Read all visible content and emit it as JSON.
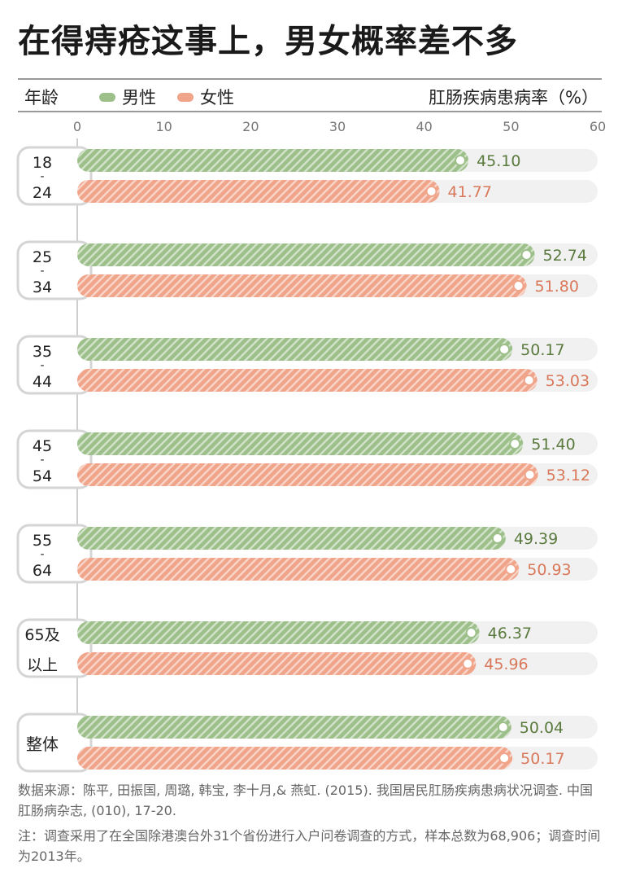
{
  "title": "在得痔疮这事上，男女概率差不多",
  "header": {
    "age_label": "年龄",
    "male_label": "男性",
    "female_label": "女性",
    "rate_label": "肛肠疾病患病率（%）"
  },
  "colors": {
    "male": "#9dc08b",
    "female": "#f0a48a",
    "male_text": "#5a7a3e",
    "female_text": "#d9785a",
    "track": "#f1f1f1",
    "bracket": "#d5d5d5"
  },
  "chart_data": {
    "type": "bar",
    "orientation": "horizontal",
    "title": "在得痔疮这事上，男女概率差不多",
    "xlabel": "肛肠疾病患病率（%）",
    "ylabel": "年龄",
    "xlim": [
      0,
      60
    ],
    "xticks": [
      0,
      10,
      20,
      30,
      40,
      50,
      60
    ],
    "categories": [
      {
        "top": "18",
        "sep": "-",
        "bottom": "24"
      },
      {
        "top": "25",
        "sep": "-",
        "bottom": "34"
      },
      {
        "top": "35",
        "sep": "-",
        "bottom": "44"
      },
      {
        "top": "45",
        "sep": "-",
        "bottom": "54"
      },
      {
        "top": "55",
        "sep": "-",
        "bottom": "64"
      },
      {
        "top": "65及",
        "sep": "",
        "bottom": "以上"
      },
      {
        "top": "整体",
        "sep": "",
        "bottom": ""
      }
    ],
    "series": [
      {
        "name": "男性",
        "values": [
          45.1,
          52.74,
          50.17,
          51.4,
          49.39,
          46.37,
          50.04
        ],
        "labels": [
          "45.10",
          "52.74",
          "50.17",
          "51.40",
          "49.39",
          "46.37",
          "50.04"
        ]
      },
      {
        "name": "女性",
        "values": [
          41.77,
          51.8,
          53.03,
          53.12,
          50.93,
          45.96,
          50.17
        ],
        "labels": [
          "41.77",
          "51.80",
          "53.03",
          "53.12",
          "50.93",
          "45.96",
          "50.17"
        ]
      }
    ]
  },
  "source_text": "数据来源：陈平, 田振国, 周璐, 韩宝, 李十月,& 燕虹. (2015). 我国居民肛肠疾病患病状况调查. 中国肛肠病杂志, (010), 17-20.",
  "note_text": "注：调查采用了在全国除港澳台外31个省份进行入户问卷调查的方式，样本总数为68,906；调查时间为2013年。"
}
